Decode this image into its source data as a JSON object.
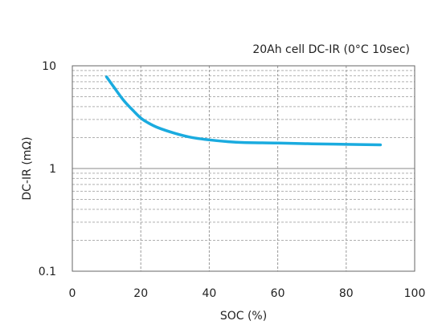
{
  "chart_data": {
    "type": "line",
    "title": "20Ah cell DC-IR (0°C 10sec)",
    "xlabel": "SOC (%)",
    "ylabel": "DC-IR (mΩ)",
    "xlim": [
      0,
      100
    ],
    "ylim": [
      0.1,
      10
    ],
    "yscale": "log",
    "grid": true,
    "x_ticks": [
      0,
      20,
      40,
      60,
      80,
      100
    ],
    "x_tick_labels": [
      "0",
      "20",
      "40",
      "60",
      "80",
      "100"
    ],
    "y_ticks": [
      0.1,
      1,
      10
    ],
    "y_tick_labels": [
      "0.1",
      "1",
      "10"
    ],
    "series_color": "#1aabdf",
    "series": [
      {
        "x": [
          10,
          12,
          15,
          18,
          20,
          22,
          25,
          30,
          35,
          40,
          45,
          50,
          60,
          70,
          80,
          90
        ],
        "y": [
          7.8,
          6.3,
          4.6,
          3.6,
          3.1,
          2.8,
          2.5,
          2.2,
          2.0,
          1.9,
          1.83,
          1.79,
          1.77,
          1.74,
          1.72,
          1.7
        ]
      }
    ]
  }
}
